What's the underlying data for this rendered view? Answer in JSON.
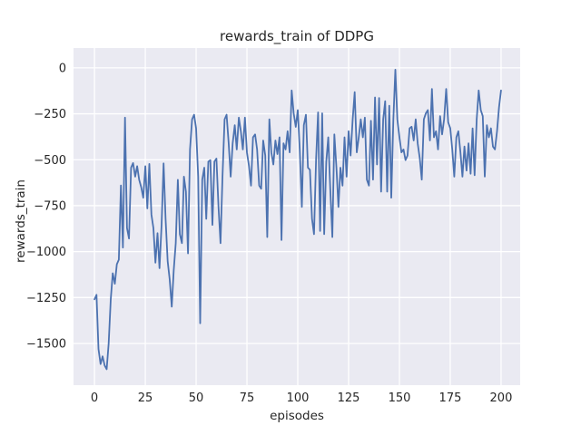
{
  "window": {
    "kind": "matplotlib-figure",
    "background": "#ffffff"
  },
  "chart_data": {
    "type": "line",
    "title": "rewards_train of DDPG",
    "xlabel": "episodes",
    "ylabel": "rewards_train",
    "x_tick_labels": [
      "0",
      "25",
      "50",
      "75",
      "100",
      "125",
      "150",
      "175",
      "200"
    ],
    "x_ticks": [
      0,
      25,
      50,
      75,
      100,
      125,
      150,
      175,
      200
    ],
    "y_tick_labels": [
      "0",
      "−250",
      "−500",
      "−750",
      "−1000",
      "−1250",
      "−1500"
    ],
    "y_ticks": [
      0,
      -250,
      -500,
      -750,
      -1000,
      -1250,
      -1500
    ],
    "xlim": [
      -10.3,
      209.4
    ],
    "ylim": [
      -1727,
      108
    ],
    "grid": true,
    "legend_position": "none",
    "style": "seaborn-darkgrid",
    "colors": {
      "line": "#4C72B0",
      "axes_background": "#EAEAF2",
      "gridline": "#FFFFFF",
      "text": "#262626"
    },
    "series": [
      {
        "name": "rewards_train",
        "x_description": "episode index 0..200, one point per episode",
        "values": [
          -1260,
          -1235,
          -1530,
          -1612,
          -1570,
          -1620,
          -1640,
          -1500,
          -1260,
          -1118,
          -1175,
          -1069,
          -1044,
          -640,
          -978,
          -271,
          -872,
          -929,
          -543,
          -518,
          -592,
          -535,
          -609,
          -650,
          -707,
          -535,
          -765,
          -523,
          -798,
          -872,
          -1060,
          -900,
          -1090,
          -855,
          -520,
          -822,
          -1053,
          -1151,
          -1300,
          -1100,
          -954,
          -609,
          -905,
          -954,
          -592,
          -674,
          -1010,
          -444,
          -280,
          -255,
          -329,
          -592,
          -1390,
          -608,
          -543,
          -822,
          -510,
          -502,
          -855,
          -510,
          -494,
          -757,
          -954,
          -592,
          -280,
          -255,
          -411,
          -592,
          -411,
          -312,
          -444,
          -271,
          -345,
          -444,
          -271,
          -460,
          -535,
          -641,
          -378,
          -362,
          -444,
          -641,
          -658,
          -395,
          -477,
          -921,
          -280,
          -460,
          -526,
          -395,
          -469,
          -378,
          -937,
          -411,
          -444,
          -345,
          -460,
          -123,
          -247,
          -321,
          -230,
          -444,
          -757,
          -312,
          -255,
          -543,
          -555,
          -822,
          -905,
          -494,
          -242,
          -888,
          -247,
          -905,
          -510,
          -378,
          -658,
          -921,
          -362,
          -543,
          -757,
          -543,
          -641,
          -378,
          -592,
          -345,
          -477,
          -280,
          -132,
          -460,
          -378,
          -280,
          -378,
          -271,
          -608,
          -641,
          -288,
          -608,
          -161,
          -526,
          -164,
          -674,
          -280,
          -181,
          -674,
          -206,
          -707,
          -280,
          -10,
          -280,
          -378,
          -460,
          -444,
          -502,
          -477,
          -329,
          -320,
          -395,
          -280,
          -411,
          -493,
          -608,
          -280,
          -247,
          -230,
          -395,
          -115,
          -378,
          -345,
          -444,
          -263,
          -362,
          -280,
          -115,
          -296,
          -329,
          -444,
          -592,
          -378,
          -345,
          -460,
          -592,
          -428,
          -559,
          -411,
          -576,
          -329,
          -584,
          -280,
          -123,
          -230,
          -263,
          -592,
          -312,
          -378,
          -329,
          -428,
          -444,
          -345,
          -214,
          -123
        ]
      }
    ]
  }
}
